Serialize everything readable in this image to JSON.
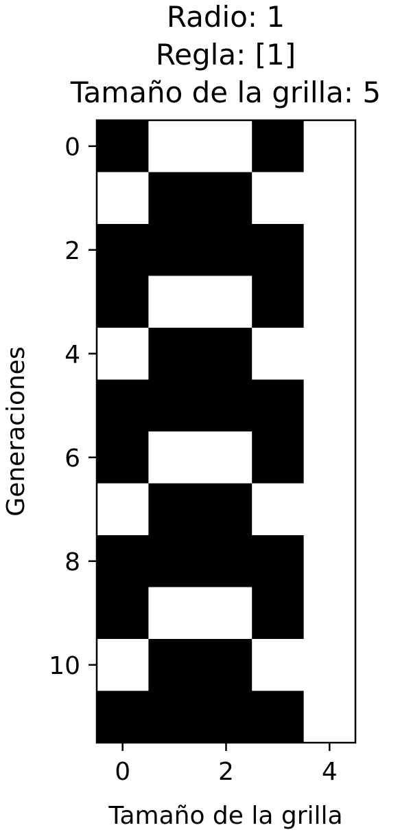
{
  "chart_data": {
    "type": "heatmap",
    "title_lines": [
      "Radio: 1",
      "Regla: [1]",
      "Tamaño de la grilla: 5"
    ],
    "xlabel": "Tamaño de la grilla",
    "ylabel": "Generaciones",
    "x_ticks": [
      0,
      2,
      4
    ],
    "y_ticks": [
      0,
      2,
      4,
      6,
      8,
      10
    ],
    "x_tick_labels": [
      "0",
      "2",
      "4"
    ],
    "y_tick_labels": [
      "0",
      "2",
      "4",
      "6",
      "8",
      "10"
    ],
    "colormap": {
      "0": "#ffffff",
      "1": "#000000"
    },
    "grid": [
      [
        1,
        0,
        0,
        1,
        0
      ],
      [
        0,
        1,
        1,
        0,
        0
      ],
      [
        1,
        1,
        1,
        1,
        0
      ],
      [
        1,
        0,
        0,
        1,
        0
      ],
      [
        0,
        1,
        1,
        0,
        0
      ],
      [
        1,
        1,
        1,
        1,
        0
      ],
      [
        1,
        0,
        0,
        1,
        0
      ],
      [
        0,
        1,
        1,
        0,
        0
      ],
      [
        1,
        1,
        1,
        1,
        0
      ],
      [
        1,
        0,
        0,
        1,
        0
      ],
      [
        0,
        1,
        1,
        0,
        0
      ],
      [
        1,
        1,
        1,
        1,
        0
      ]
    ]
  }
}
